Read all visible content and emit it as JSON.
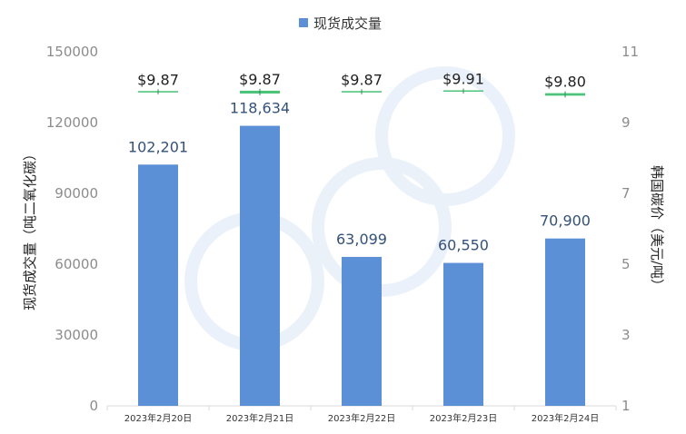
{
  "chart_data": {
    "type": "bar",
    "categories": [
      "2023年2月20日",
      "2023年2月21日",
      "2023年2月22日",
      "2023年2月23日",
      "2023年2月24日"
    ],
    "series": [
      {
        "name": "现货成交量",
        "type": "bar",
        "axis": "left",
        "color": "#5b8fd6",
        "values": [
          102201,
          118634,
          63099,
          60550,
          70900
        ],
        "value_labels": [
          "102,201",
          "118,634",
          "63,099",
          "60,550",
          "70,900"
        ]
      },
      {
        "type": "range",
        "axis": "right",
        "color": "#4cc47a",
        "values": [
          9.87,
          9.87,
          9.87,
          9.91,
          9.8
        ],
        "value_labels": [
          "$9.87",
          "$9.87",
          "$9.87",
          "$9.91",
          "$9.80"
        ],
        "high": [
          9.89,
          9.9,
          9.89,
          9.91,
          9.83
        ],
        "low": [
          9.85,
          9.82,
          9.85,
          9.91,
          9.76
        ]
      }
    ],
    "y_left": {
      "label": "现货成交量（吨二氧化碳）",
      "lim": [
        0,
        150000
      ],
      "ticks": [
        "0",
        "30000",
        "60000",
        "90000",
        "120000",
        "150000"
      ]
    },
    "y_right": {
      "label": "韩国碳价（美元/吨）",
      "lim": [
        1,
        11
      ],
      "ticks": [
        "1",
        "3",
        "5",
        "7",
        "9",
        "11"
      ]
    },
    "legend": {
      "position": "top-center",
      "entries": [
        "现货成交量"
      ]
    },
    "grid": false
  }
}
